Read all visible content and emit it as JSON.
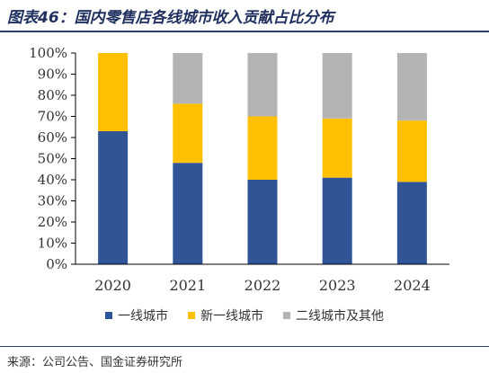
{
  "title": "图表46：国内零售店各线城市收入贡献占比分布",
  "source": "来源：公司公告、国金证券研究所",
  "colors": {
    "tier1": "#2f5597",
    "new_tier1": "#ffc000",
    "tier2_and_others": "#b4b4b4"
  },
  "chart_data": {
    "type": "bar",
    "stacked": true,
    "percent": true,
    "categories": [
      "2020",
      "2021",
      "2022",
      "2023",
      "2024"
    ],
    "series": [
      {
        "name": "一线城市",
        "values": [
          63,
          48,
          40,
          41,
          39
        ]
      },
      {
        "name": "新一线城市",
        "values": [
          37,
          28,
          30,
          28,
          29
        ]
      },
      {
        "name": "二线城市及其他",
        "values": [
          0,
          24,
          30,
          31,
          32
        ]
      }
    ],
    "ylim": [
      0,
      100
    ],
    "yticks": [
      "0%",
      "10%",
      "20%",
      "30%",
      "40%",
      "50%",
      "60%",
      "70%",
      "80%",
      "90%",
      "100%"
    ],
    "grid": false,
    "legend_position": "bottom"
  }
}
